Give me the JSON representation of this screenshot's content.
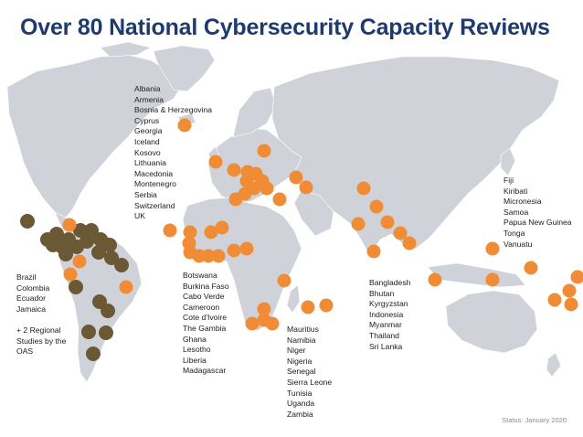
{
  "title": "Over 80 National Cybersecurity Capacity Reviews",
  "status": "Status: January 2020",
  "colors": {
    "title": "#1d3b6e",
    "land": "#cfd2d8",
    "national_review": "#f08c36",
    "oas_review": "#6b5835"
  },
  "legend_groups": {
    "europe": [
      "Albania",
      "Armenia",
      "Bosnia & Herzegovina",
      "Cyprus",
      "Georgia",
      "Iceland",
      "Kosovo",
      "Lithuania",
      "Macedonia",
      "Montenegro",
      "Serbia",
      "Switzerland",
      "UK"
    ],
    "americas": [
      "Brazil",
      "Colombia",
      "Ecuador",
      "Jamaica"
    ],
    "americas_note": [
      "+ 2 Regional",
      "Studies by the",
      "OAS"
    ],
    "west_africa": [
      "Botswana",
      "Burkina Faso",
      "Cabo Verde",
      "Cameroon",
      "Cote d'Ivoire",
      "The Gambia",
      "Ghana",
      "Lesotho",
      "Liberia",
      "Madagascar"
    ],
    "east_africa": [
      "Mauritius",
      "Namibia",
      "Niger",
      "Nigeria",
      "Senegal",
      "Sierra Leone",
      "Tunisia",
      "Uganda",
      "Zambia"
    ],
    "asia": [
      "Bangladesh",
      "Bhutan",
      "Kyrgyzstan",
      "Indonesia",
      "Myanmar",
      "Thailand",
      "Sri Lanka"
    ],
    "pacific": [
      "Fiji",
      "Kiribati",
      "Micronesia",
      "Samoa",
      "Papua New Guinea",
      "Tonga",
      "Vanuatu"
    ]
  }
}
